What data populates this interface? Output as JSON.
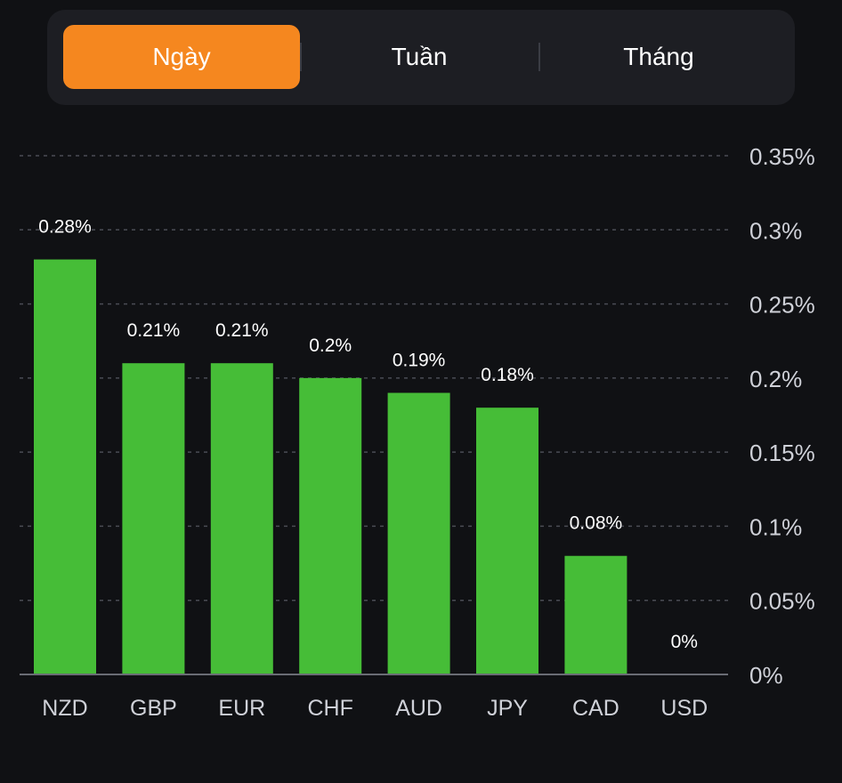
{
  "tabs": [
    {
      "label": "Ngày",
      "active": true
    },
    {
      "label": "Tuần",
      "active": false
    },
    {
      "label": "Tháng",
      "active": false
    }
  ],
  "colors": {
    "accent": "#f5871f",
    "bar": "#46bd37",
    "background": "#101114",
    "panel": "#1d1e23"
  },
  "chart_data": {
    "type": "bar",
    "categories": [
      "NZD",
      "GBP",
      "EUR",
      "CHF",
      "AUD",
      "JPY",
      "CAD",
      "USD"
    ],
    "values": [
      0.28,
      0.21,
      0.21,
      0.2,
      0.19,
      0.18,
      0.08,
      0
    ],
    "data_labels": [
      "0.28%",
      "0.21%",
      "0.21%",
      "0.2%",
      "0.19%",
      "0.18%",
      "0.08%",
      "0%"
    ],
    "yticks": [
      0,
      0.05,
      0.1,
      0.15,
      0.2,
      0.25,
      0.3,
      0.35
    ],
    "ytick_labels": [
      "0%",
      "0.05%",
      "0.1%",
      "0.15%",
      "0.2%",
      "0.25%",
      "0.3%",
      "0.35%"
    ],
    "ylim": [
      0,
      0.35
    ],
    "y_axis_position": "right",
    "grid": true,
    "title": "",
    "xlabel": "",
    "ylabel": ""
  }
}
